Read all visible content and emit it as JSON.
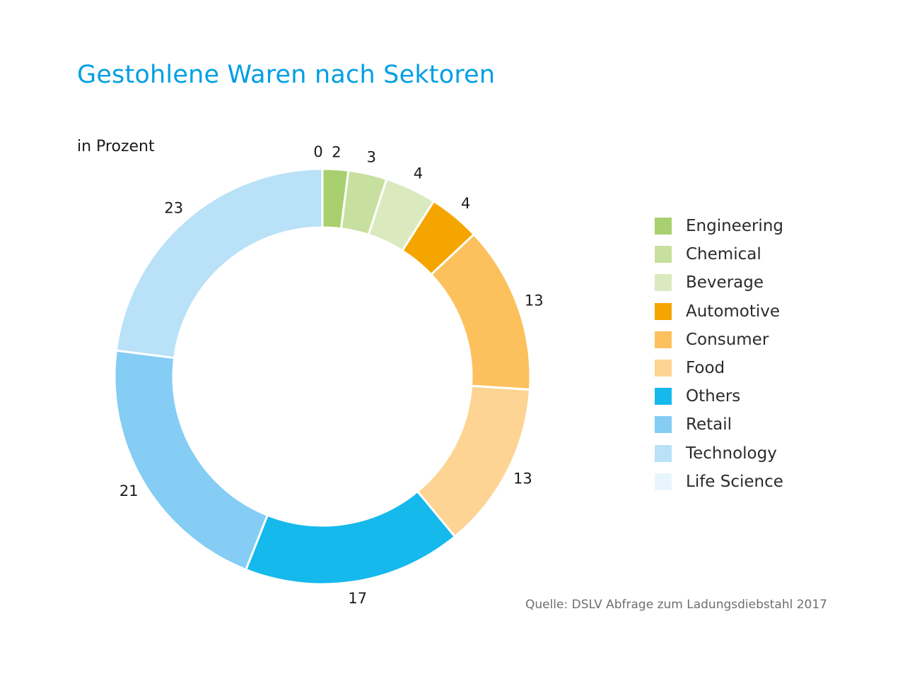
{
  "title": "Gestohlene Waren nach Sektoren",
  "unit_label": "in Prozent",
  "source": "Quelle: DSLV Abfrage zum Ladungsdiebstahl 2017",
  "chart_data": {
    "type": "pie",
    "variant": "donut",
    "title": "Gestohlene Waren nach Sektoren",
    "unit": "in Prozent",
    "legend_position": "right",
    "categories": [
      "Engineering",
      "Chemical",
      "Beverage",
      "Automotive",
      "Consumer",
      "Food",
      "Others",
      "Retail",
      "Technology",
      "Life Science"
    ],
    "values": [
      2,
      3,
      4,
      4,
      13,
      13,
      17,
      21,
      23,
      0
    ],
    "colors": [
      "#a8d06f",
      "#c7e09f",
      "#dbeabe",
      "#f5a500",
      "#fcc15d",
      "#fdd493",
      "#16b9ec",
      "#85cdf4",
      "#b9e1f8",
      "#e8f5fd"
    ]
  }
}
